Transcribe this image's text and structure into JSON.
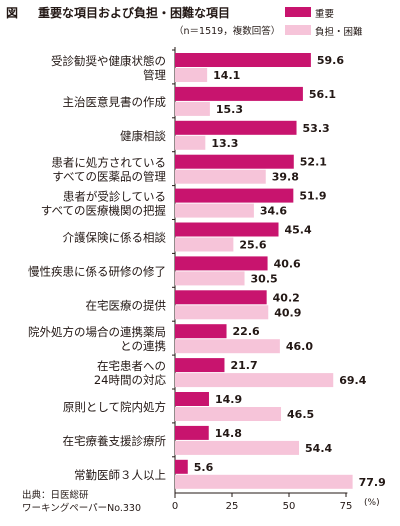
{
  "figure": {
    "label": "図",
    "title": "重要な項目および負担・困難な項目",
    "note": "（n＝1519，複数回答）",
    "source_line1": "出典：日医総研",
    "source_line2": "ワーキングペーパーNo.330",
    "unit": "(%)"
  },
  "colors": {
    "important": "#c8146e",
    "burden": "#f6c4d9",
    "text": "#231815"
  },
  "chart_data": {
    "type": "bar",
    "orientation": "horizontal",
    "categories": [
      [
        "受診勧奨や健康状態の",
        "管理"
      ],
      [
        "主治医意見書の作成"
      ],
      [
        "健康相談"
      ],
      [
        "患者に処方されている",
        "すべての医薬品の管理"
      ],
      [
        "患者が受診している",
        "すべての医療機関の把握"
      ],
      [
        "介護保険に係る相談"
      ],
      [
        "慢性疾患に係る研修の修了"
      ],
      [
        "在宅医療の提供"
      ],
      [
        "院外処方の場合の連携薬局",
        "との連携"
      ],
      [
        "在宅患者への",
        "24時間の対応"
      ],
      [
        "原則として院内処方"
      ],
      [
        "在宅療養支援診療所"
      ],
      [
        "常勤医師３人以上"
      ]
    ],
    "series": [
      {
        "name": "重要",
        "values": [
          59.6,
          56.1,
          53.3,
          52.1,
          51.9,
          45.4,
          40.6,
          40.2,
          22.6,
          21.7,
          14.9,
          14.8,
          5.6
        ]
      },
      {
        "name": "負担・困難",
        "values": [
          14.1,
          15.3,
          13.3,
          39.8,
          34.6,
          25.6,
          30.5,
          40.9,
          46.0,
          69.4,
          46.5,
          54.4,
          77.9
        ]
      }
    ],
    "value_labels": [
      [
        "59.6",
        "56.1",
        "53.3",
        "52.1",
        "51.9",
        "45.4",
        "40.6",
        "40.2",
        "22.6",
        "21.7",
        "14.9",
        "14.8",
        "5.6"
      ],
      [
        "14.1",
        "15.3",
        "13.3",
        "39.8",
        "34.6",
        "25.6",
        "30.5",
        "40.9",
        "46.0",
        "69.4",
        "46.5",
        "54.4",
        "77.9"
      ]
    ],
    "xlim": [
      0,
      80
    ],
    "xticks": [
      "0",
      "25",
      "50",
      "75"
    ],
    "xtick_values": [
      0,
      25,
      50,
      75
    ],
    "legend_position": "top-right",
    "grid": false
  }
}
